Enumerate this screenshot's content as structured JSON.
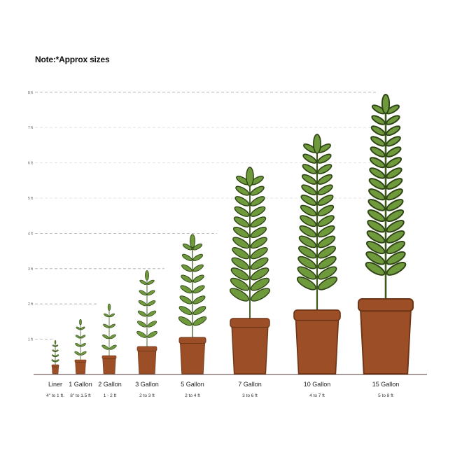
{
  "note": "Note:*Approx sizes",
  "axis": {
    "ticks": [
      "1 ft",
      "2 ft",
      "3 ft",
      "4 ft",
      "5 ft",
      "6 ft",
      "7 ft",
      "8 ft"
    ]
  },
  "colors": {
    "leaf": "#6e9a3c",
    "leaf_outline": "#2f4416",
    "pot": "#9c4f26",
    "pot_dark": "#6e3416",
    "baseline": "#8a7a7a",
    "grid": "#bbbbbb"
  },
  "plants": [
    {
      "size": "Liner",
      "range": "4\" to 1 ft."
    },
    {
      "size": "1 Gallon",
      "range": "8\" to 1.5 ft"
    },
    {
      "size": "2 Gallon",
      "range": "1 - 2 ft"
    },
    {
      "size": "3 Gallon",
      "range": "2 to 3 ft"
    },
    {
      "size": "5 Gallon",
      "range": "2 to 4 ft"
    },
    {
      "size": "7 Gallon",
      "range": "3 to 6 ft"
    },
    {
      "size": "10 Gallon",
      "range": "4 to 7 ft"
    },
    {
      "size": "15 Gallon",
      "range": "5 to 8 ft"
    }
  ]
}
